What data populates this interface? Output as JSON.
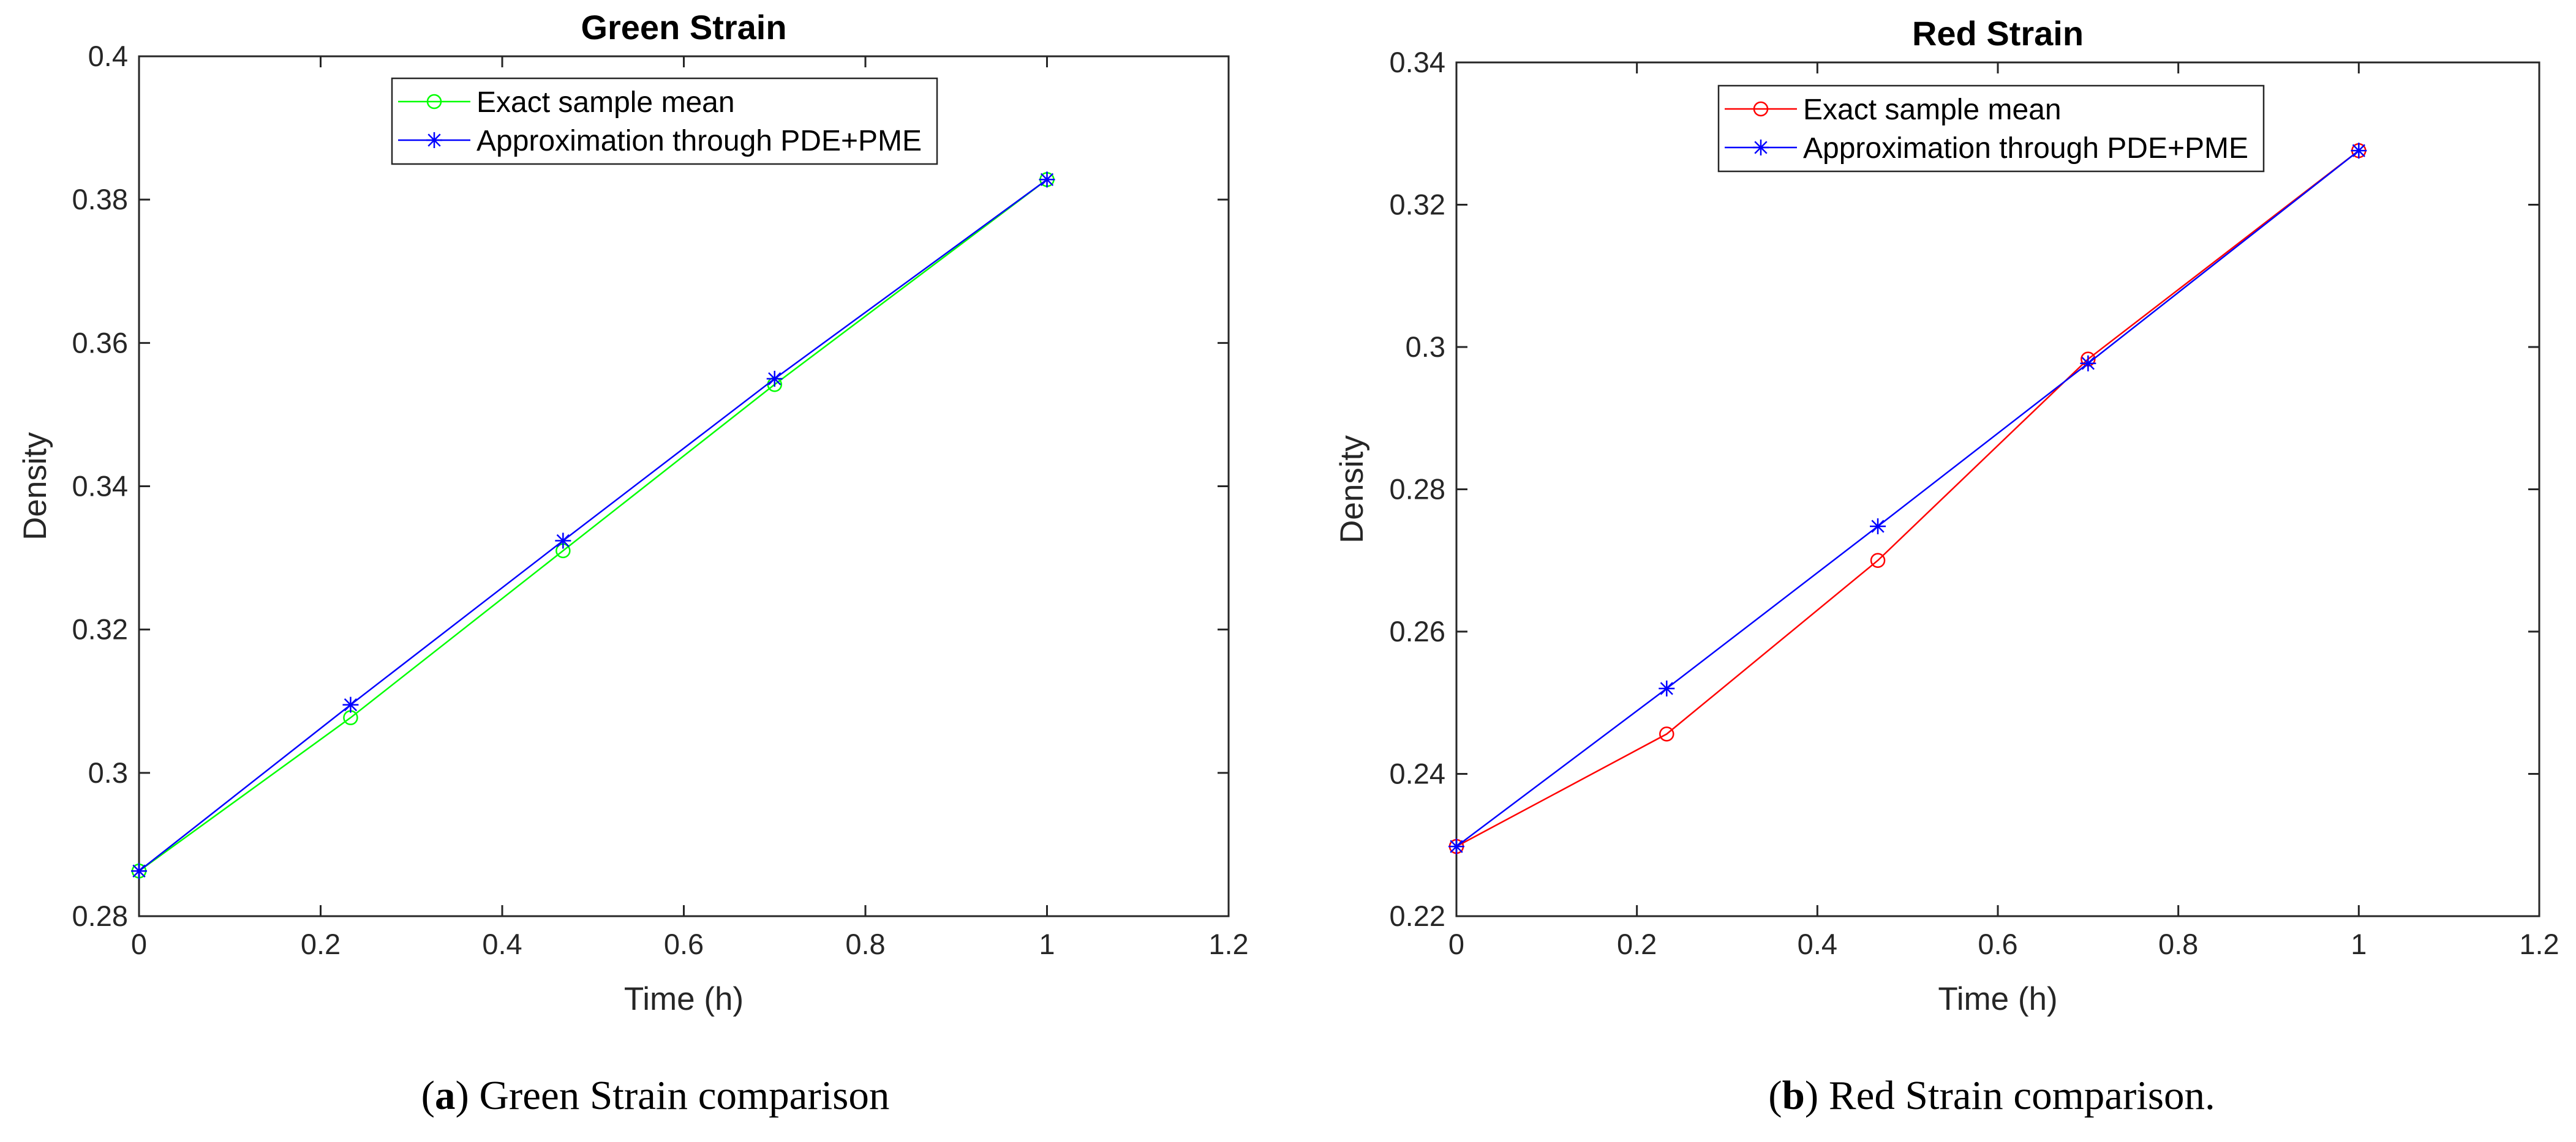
{
  "chart_data": [
    {
      "type": "line",
      "title": "Green Strain",
      "xlabel": "Time (h)",
      "ylabel": "Density",
      "xlim": [
        0,
        1.2
      ],
      "ylim": [
        0.28,
        0.4
      ],
      "xticks": [
        "0",
        "0.2",
        "0.4",
        "0.6",
        "0.8",
        "1",
        "1.2"
      ],
      "yticks": [
        "0.28",
        "0.3",
        "0.32",
        "0.34",
        "0.36",
        "0.38",
        "0.4"
      ],
      "x": [
        0,
        0.233,
        0.467,
        0.7,
        1.0
      ],
      "series": [
        {
          "name": "Exact sample mean",
          "color": "#00ff00",
          "marker": "circle",
          "values": [
            0.2863,
            0.3077,
            0.331,
            0.3542,
            0.3828
          ]
        },
        {
          "name": "Approximation through PDE+PME",
          "color": "#0000ff",
          "marker": "asterisk",
          "values": [
            0.2863,
            0.3095,
            0.3324,
            0.355,
            0.3828
          ]
        }
      ],
      "legend": "top-center",
      "caption_label": "(a)",
      "caption_letter": "a",
      "caption_text": "Green Strain comparison"
    },
    {
      "type": "line",
      "title": "Red Strain",
      "xlabel": "Time (h)",
      "ylabel": "Density",
      "xlim": [
        0,
        1.2
      ],
      "ylim": [
        0.22,
        0.34
      ],
      "xticks": [
        "0",
        "0.2",
        "0.4",
        "0.6",
        "0.8",
        "1",
        "1.2"
      ],
      "yticks": [
        "0.22",
        "0.24",
        "0.26",
        "0.28",
        "0.3",
        "0.32",
        "0.34"
      ],
      "x": [
        0,
        0.233,
        0.467,
        0.7,
        1.0
      ],
      "series": [
        {
          "name": "Exact sample mean",
          "color": "#ff0000",
          "marker": "circle",
          "values": [
            0.2298,
            0.2456,
            0.27,
            0.2983,
            0.3276
          ]
        },
        {
          "name": "Approximation through PDE+PME",
          "color": "#0000ff",
          "marker": "asterisk",
          "values": [
            0.2298,
            0.252,
            0.2748,
            0.2977,
            0.3276
          ]
        }
      ],
      "legend": "top-center",
      "caption_label": "(b)",
      "caption_letter": "b",
      "caption_text": "Red Strain comparison."
    }
  ]
}
